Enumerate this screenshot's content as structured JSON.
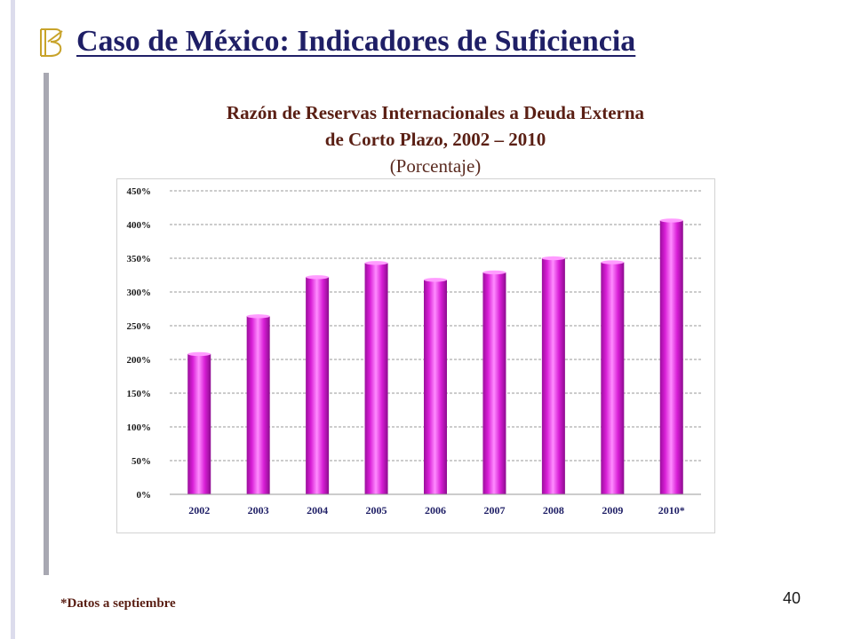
{
  "slide": {
    "title": "Caso de México: Indicadores de Suficiencia",
    "footnote": "*Datos a septiembre",
    "page_number": "40"
  },
  "chart_heading": {
    "line1": "Razón de Reservas Internacionales a Deuda Externa",
    "line2": "de Corto Plazo, 2002 – 2010",
    "subtitle": "(Porcentaje)"
  },
  "colors": {
    "title": "#1f1f66",
    "bar": "#d81ed6",
    "bar_highlight": "#ff8cff",
    "accent_gold": "#c8a32a"
  },
  "icons": {
    "header": "stylized-b-logo-icon"
  },
  "chart_data": {
    "type": "bar",
    "categories": [
      "2002",
      "2003",
      "2004",
      "2005",
      "2006",
      "2007",
      "2008",
      "2009",
      "2010*"
    ],
    "values": [
      208,
      264,
      322,
      343,
      318,
      329,
      350,
      344,
      406
    ],
    "y_ticks": [
      "0%",
      "50%",
      "100%",
      "150%",
      "200%",
      "250%",
      "300%",
      "350%",
      "400%",
      "450%"
    ],
    "ylim": [
      0,
      450
    ],
    "y_unit": "%",
    "grid": true,
    "grid_style": "dashed",
    "legend": "none"
  }
}
